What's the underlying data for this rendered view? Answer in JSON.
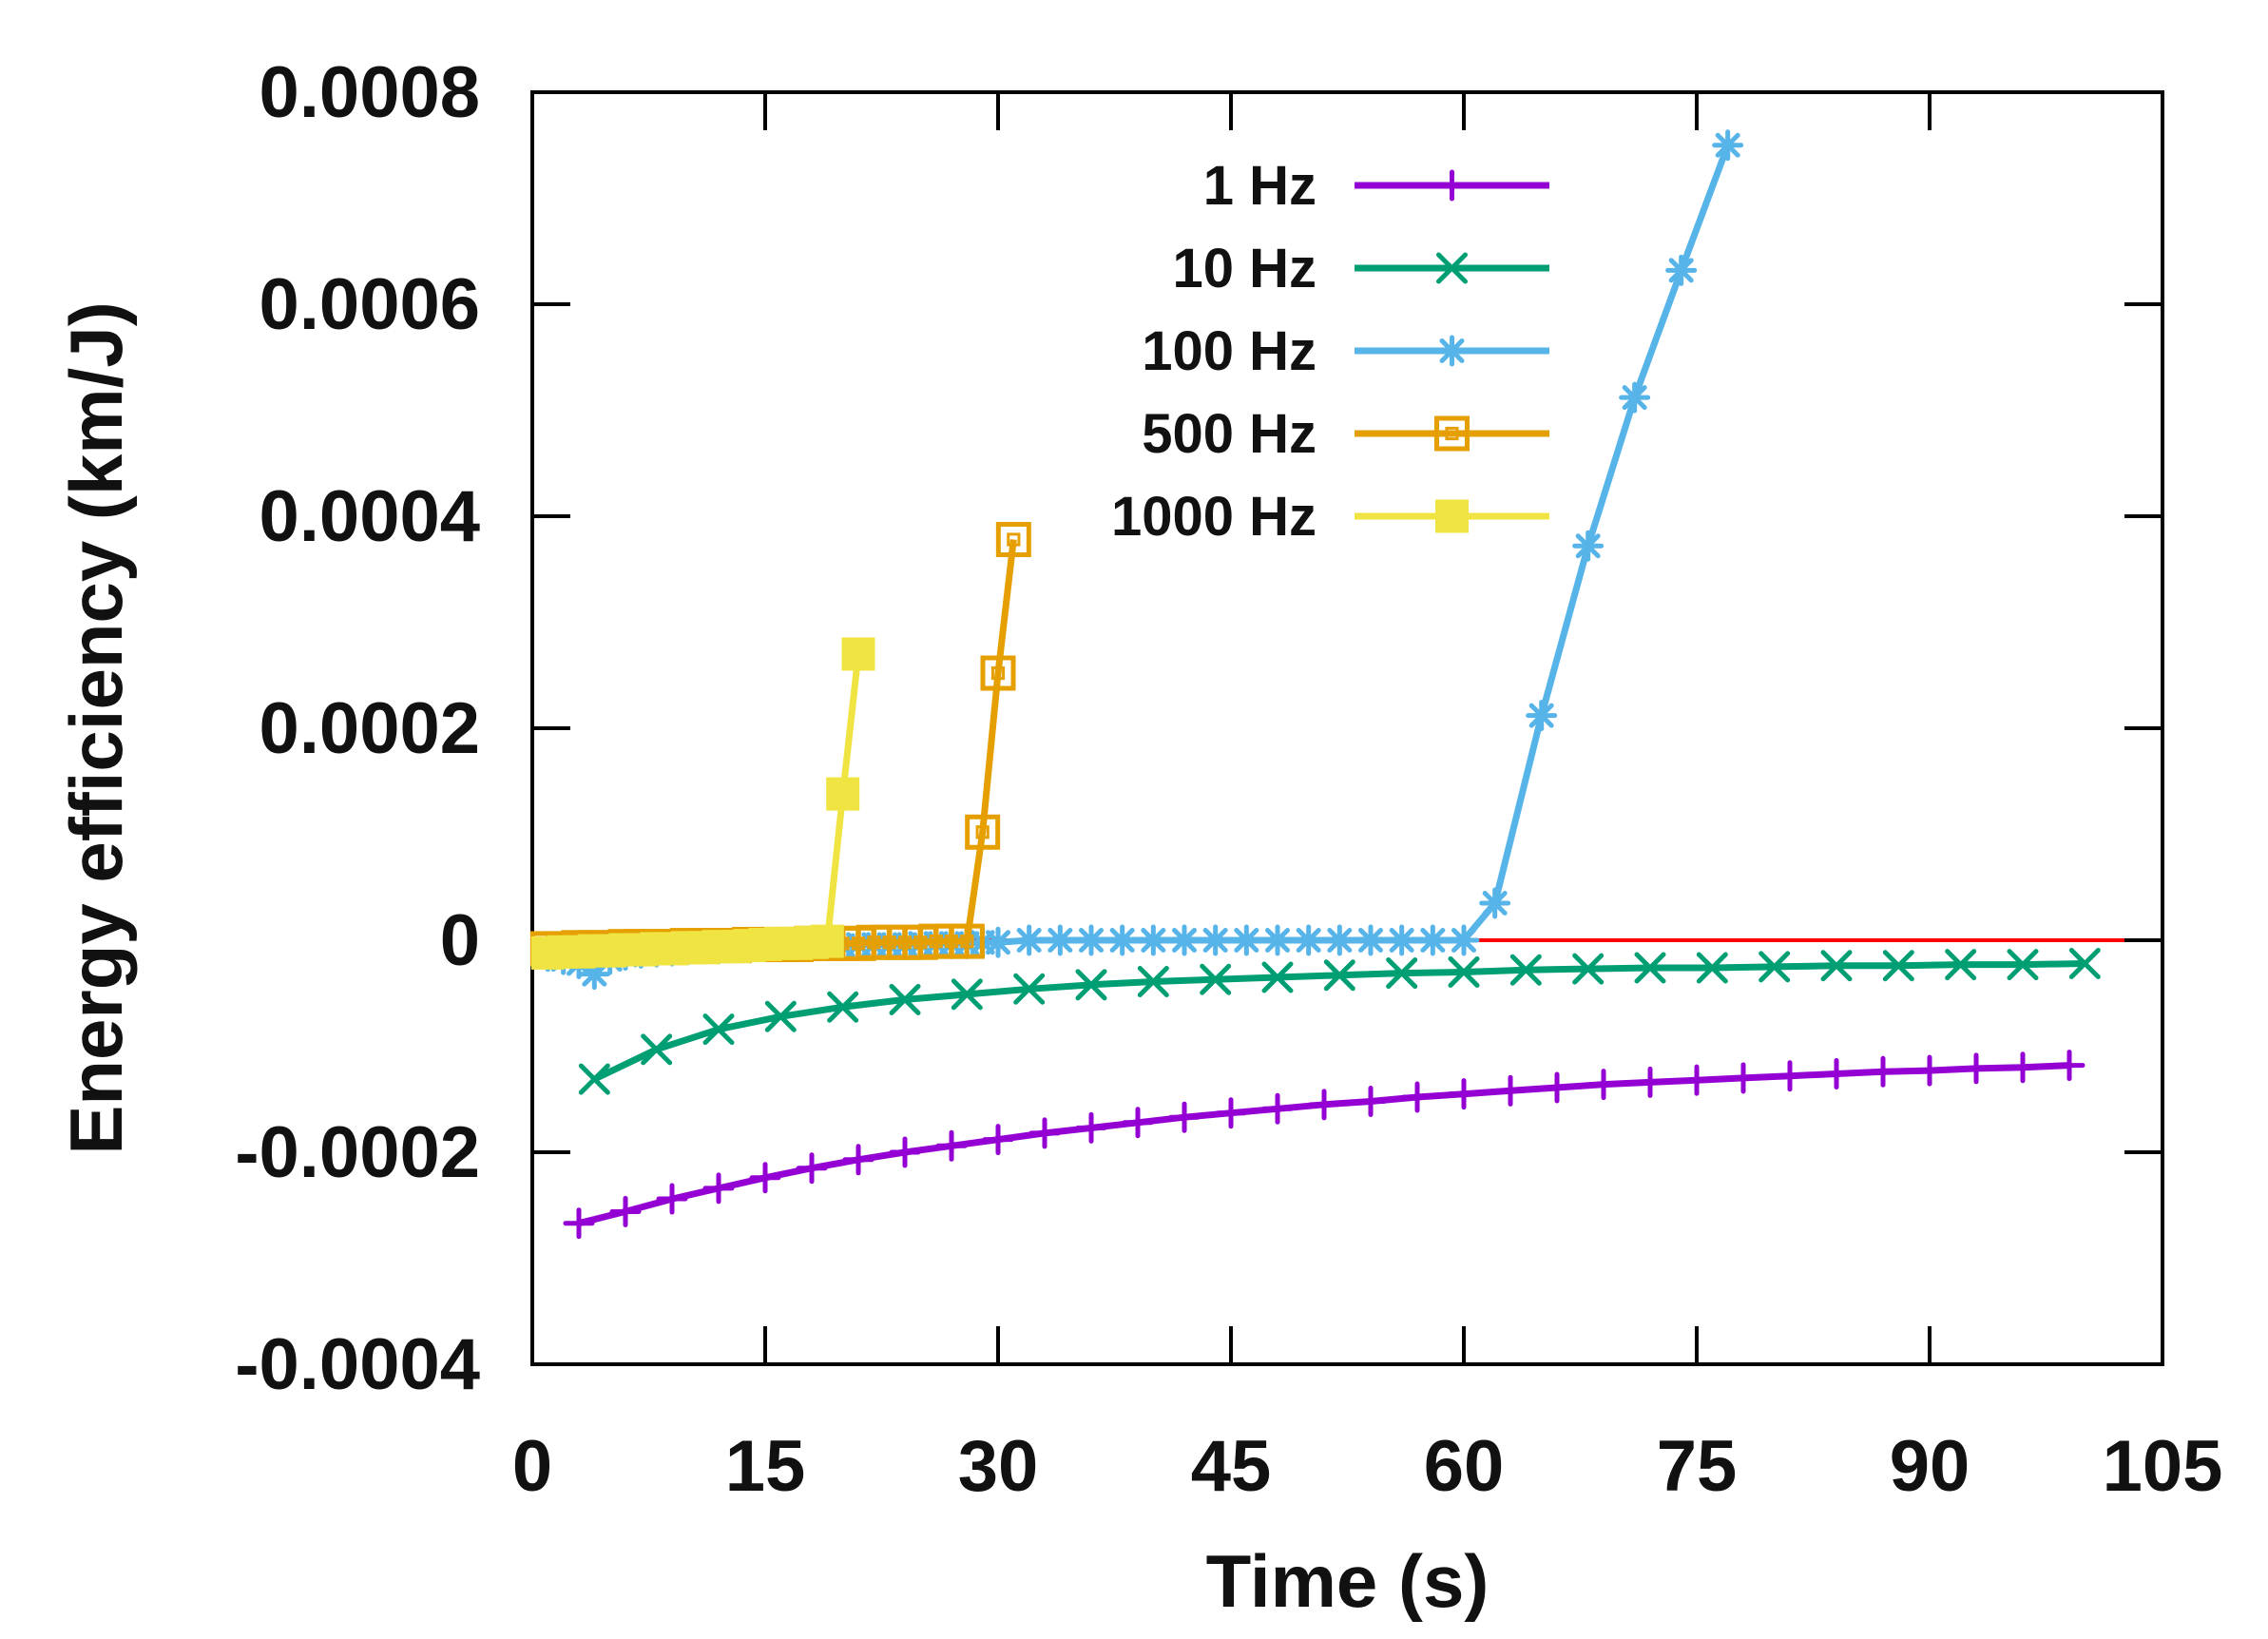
{
  "chart_data": {
    "type": "line",
    "title": "",
    "xlabel": "Time (s)",
    "ylabel": "Energy efficiency (km/J)",
    "xlim": [
      0,
      105
    ],
    "ylim": [
      -0.0004,
      0.0008
    ],
    "xticks": [
      "0",
      "15",
      "30",
      "45",
      "60",
      "75",
      "90",
      "105"
    ],
    "xtick_values": [
      0,
      15,
      30,
      45,
      60,
      75,
      90,
      105
    ],
    "yticks": [
      "-0.0004",
      "-0.0002",
      "0",
      "0.0002",
      "0.0004",
      "0.0006",
      "0.0008"
    ],
    "ytick_values": [
      -0.0004,
      -0.0002,
      0,
      0.0002,
      0.0004,
      0.0006,
      0.0008
    ],
    "grid": false,
    "legend_position": "top-right",
    "reference_line": {
      "y": 0,
      "color": "#ff0000"
    },
    "series": [
      {
        "name": "1 Hz",
        "color": "#9400d3",
        "marker": "plus",
        "x": [
          3,
          6,
          9,
          12,
          15,
          18,
          21,
          24,
          27,
          30,
          33,
          36,
          39,
          42,
          45,
          48,
          51,
          54,
          57,
          60,
          63,
          66,
          69,
          72,
          75,
          78,
          81,
          84,
          87,
          90,
          93,
          96,
          99
        ],
        "y": [
          -0.000267,
          -0.000256,
          -0.000244,
          -0.000234,
          -0.000224,
          -0.000215,
          -0.000207,
          -0.0002,
          -0.000194,
          -0.000188,
          -0.000182,
          -0.000177,
          -0.000172,
          -0.000167,
          -0.000163,
          -0.000159,
          -0.000155,
          -0.000152,
          -0.000148,
          -0.000145,
          -0.000142,
          -0.000139,
          -0.000136,
          -0.000134,
          -0.000132,
          -0.00013,
          -0.000128,
          -0.000126,
          -0.000124,
          -0.000123,
          -0.000121,
          -0.00012,
          -0.000118
        ]
      },
      {
        "name": "10 Hz",
        "color": "#009e73",
        "marker": "cross",
        "x": [
          4,
          8,
          12,
          16,
          20,
          24,
          28,
          32,
          36,
          40,
          44,
          48,
          52,
          56,
          60,
          64,
          68,
          72,
          76,
          80,
          84,
          88,
          92,
          96,
          100
        ],
        "y": [
          -0.000131,
          -0.000103,
          -8.4e-05,
          -7.2e-05,
          -6.3e-05,
          -5.6e-05,
          -5.1e-05,
          -4.6e-05,
          -4.2e-05,
          -3.9e-05,
          -3.7e-05,
          -3.5e-05,
          -3.3e-05,
          -3.1e-05,
          -3e-05,
          -2.8e-05,
          -2.7e-05,
          -2.6e-05,
          -2.6e-05,
          -2.5e-05,
          -2.4e-05,
          -2.4e-05,
          -2.3e-05,
          -2.3e-05,
          -2.2e-05
        ]
      },
      {
        "name": "100 Hz",
        "color": "#56b4e9",
        "marker": "asterisk",
        "x": [
          1,
          2,
          3,
          4,
          5,
          6,
          7,
          8,
          9,
          10,
          11,
          12,
          13,
          14,
          15,
          16,
          17,
          18,
          19,
          20,
          21,
          22,
          23,
          24,
          25,
          26,
          27,
          28,
          29,
          30,
          32,
          34,
          36,
          38,
          40,
          42,
          44,
          46,
          48,
          50,
          52,
          54,
          56,
          58,
          60,
          62,
          65,
          68,
          71,
          74,
          77
        ],
        "y": [
          -1.5e-05,
          -1.8e-05,
          -2.2e-05,
          -3.2e-05,
          -1.8e-05,
          -1.4e-05,
          -1.2e-05,
          -1.1e-05,
          -1e-05,
          -9e-06,
          -8e-06,
          -8e-06,
          -7e-06,
          -7e-06,
          -6e-06,
          -6e-06,
          -6e-06,
          -5e-06,
          -5e-06,
          -5e-06,
          -4e-06,
          -4e-06,
          -4e-06,
          -4e-06,
          -3e-06,
          -3e-06,
          -3e-06,
          -3e-06,
          -2e-06,
          -2e-06,
          0,
          0,
          0,
          0,
          0,
          0,
          0,
          0,
          0,
          0,
          0,
          0,
          0,
          0,
          0,
          3.5e-05,
          0.000212,
          0.000372,
          0.000512,
          0.000632,
          0.00075
        ]
      },
      {
        "name": "500 Hz",
        "color": "#e69f00",
        "marker": "open-square",
        "x": [
          1,
          2,
          3,
          4,
          5,
          6,
          7,
          8,
          9,
          10,
          11,
          12,
          13,
          14,
          15,
          16,
          17,
          18,
          19,
          20,
          21,
          22,
          23,
          24,
          25,
          26,
          27,
          28,
          29,
          30,
          31
        ],
        "y": [
          -8e-06,
          -8e-06,
          -7e-06,
          -7e-06,
          -7e-06,
          -6e-06,
          -6e-06,
          -6e-06,
          -6e-06,
          -5e-06,
          -5e-06,
          -5e-06,
          -5e-06,
          -4e-06,
          -4e-06,
          -4e-06,
          -4e-06,
          -3e-06,
          -3e-06,
          -3e-06,
          -3e-06,
          -2e-06,
          -2e-06,
          -2e-06,
          -2e-06,
          -1e-06,
          -1e-06,
          -1e-06,
          0.000102,
          0.000252,
          0.000378
        ]
      },
      {
        "name": "1000 Hz",
        "color": "#f0e442",
        "marker": "filled-square",
        "x": [
          1,
          2,
          3,
          4,
          5,
          6,
          7,
          8,
          9,
          10,
          11,
          12,
          13,
          14,
          15,
          16,
          17,
          18,
          19,
          20,
          21
        ],
        "y": [
          -1.2e-05,
          -1.1e-05,
          -1.1e-05,
          -1e-05,
          -1e-05,
          -9e-06,
          -9e-06,
          -8e-06,
          -8e-06,
          -7e-06,
          -7e-06,
          -6e-06,
          -6e-06,
          -5e-06,
          -4e-06,
          -3e-06,
          -3e-06,
          -2e-06,
          -1e-06,
          0.000138,
          0.00027
        ]
      }
    ]
  }
}
